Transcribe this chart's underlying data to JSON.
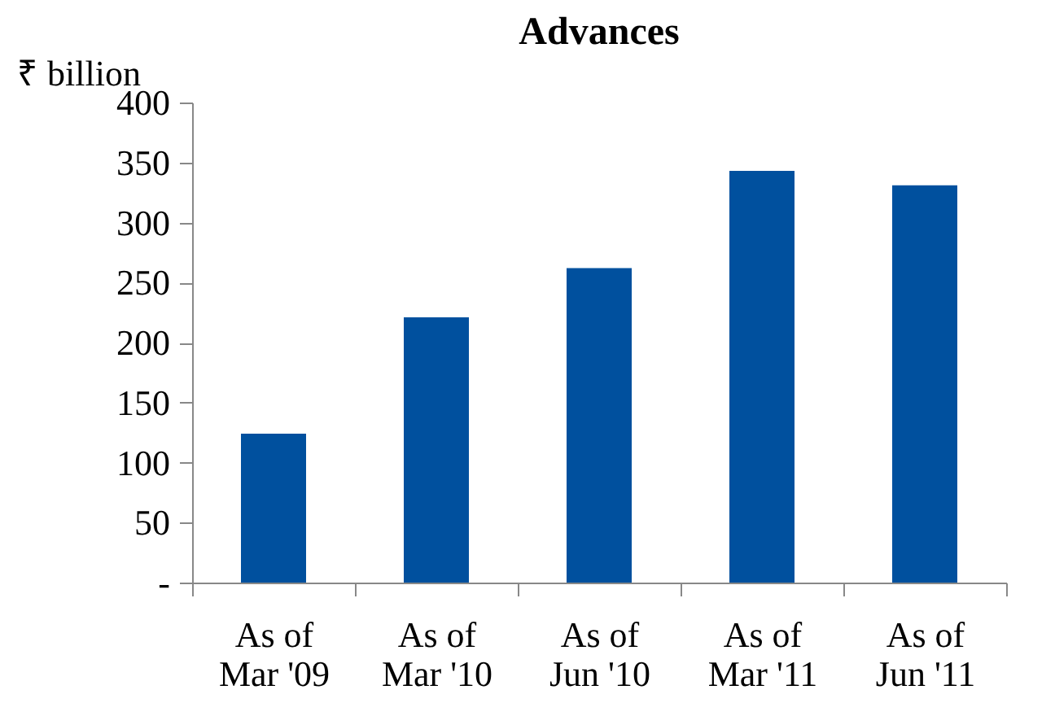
{
  "chart_data": {
    "type": "bar",
    "title": "Advances",
    "ylabel": "₹ billion",
    "categories": [
      "As of Mar '09",
      "As of Mar '10",
      "As of Jun '10",
      "As of Mar '11",
      "As of Jun '11"
    ],
    "values": [
      124,
      221,
      262,
      343,
      331
    ],
    "color": "#00509e",
    "ylim": [
      0,
      400
    ],
    "yticks": [
      {
        "value": 0,
        "label": "-"
      },
      50,
      100,
      150,
      200,
      250,
      300,
      350,
      400
    ],
    "grid": false
  }
}
